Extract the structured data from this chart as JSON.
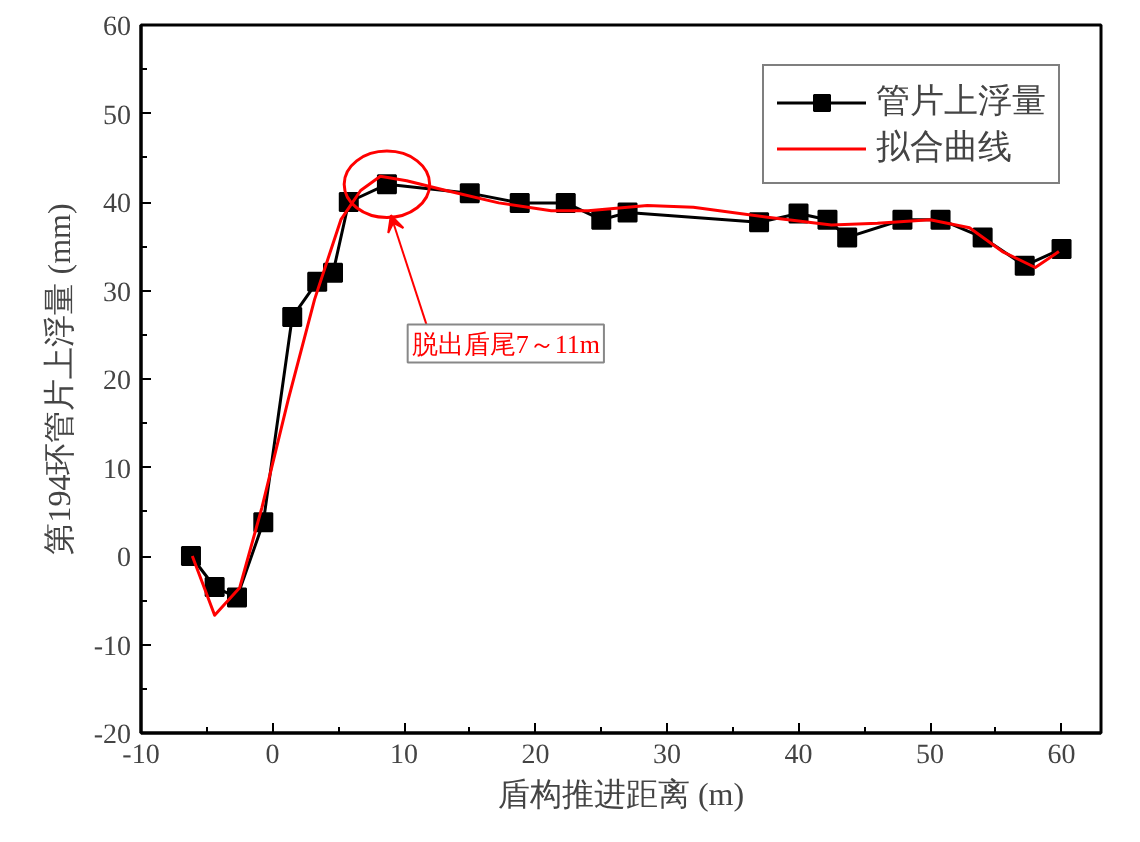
{
  "chart_data": {
    "type": "line",
    "xlabel": "盾构推进距离 (m)",
    "ylabel": "第194环管片上浮量 (mm)",
    "xlim": [
      -10,
      63
    ],
    "ylim": [
      -20,
      60
    ],
    "xticks": [
      -10,
      0,
      10,
      20,
      30,
      40,
      50,
      60
    ],
    "yticks": [
      -20,
      -10,
      0,
      10,
      20,
      30,
      40,
      50,
      60
    ],
    "grid": false,
    "legend": "top right",
    "marker": "square",
    "line_style": "solid",
    "annotations": [
      "脱出盾尾7～11m"
    ],
    "series": [
      {
        "name": "管片上浮量",
        "color": "#000000",
        "x": [
          -6.2,
          -4.4,
          -2.7,
          -0.7,
          1.5,
          3.4,
          4.6,
          5.8,
          8.7,
          15,
          18.8,
          22.3,
          25,
          27,
          37,
          40,
          42.2,
          43.7,
          47.9,
          50.8,
          54,
          57.2,
          60
        ],
        "values": [
          0,
          -3.5,
          -4.7,
          3.8,
          27,
          31,
          32,
          40,
          42,
          41,
          39.9,
          39.9,
          38,
          38.8,
          37.7,
          38.7,
          38,
          36,
          38,
          38,
          36,
          32.8,
          34.7
        ]
      },
      {
        "name": "拟合曲线",
        "color": "#ff0000",
        "marker": "none",
        "x": [
          -6.1,
          -4.4,
          -2.5,
          -0.8,
          1.2,
          3.2,
          5.2,
          6.7,
          8.2,
          10.2,
          13.2,
          17.2,
          21.2,
          24,
          28.5,
          32,
          37.5,
          42.5,
          46,
          50,
          53,
          55.5,
          58,
          59.8
        ],
        "values": [
          0,
          -6.7,
          -3.6,
          5.5,
          17.7,
          29,
          38,
          41.3,
          42.9,
          42.4,
          41.3,
          39.9,
          39,
          39,
          39.6,
          39.4,
          38.3,
          37.4,
          37.6,
          38,
          37.1,
          34.4,
          32.6,
          34.4
        ]
      }
    ]
  }
}
